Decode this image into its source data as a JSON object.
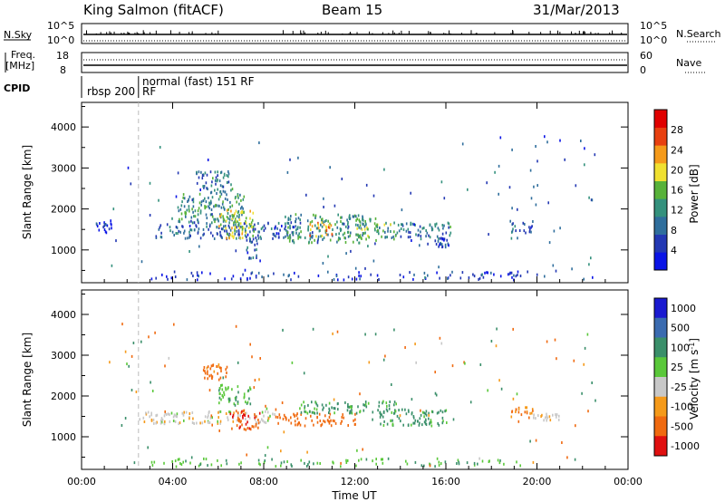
{
  "header": {
    "station": "King Salmon (fitACF)",
    "beam": "Beam 15",
    "date": "31/Mar/2013"
  },
  "top_panels": {
    "nsky_label": "N.Sky",
    "nsky_ticks": [
      "10^5",
      "10^0"
    ],
    "nsearch_label": "N.Search",
    "nsearch_ticks": [
      "10^5",
      "10^0"
    ],
    "freq_label_1": "Freq.",
    "freq_label_2": "[MHz]",
    "freq_ticks": [
      "18",
      "8"
    ],
    "nave_label": "Nave",
    "nave_ticks": [
      "60",
      "0"
    ],
    "cpid_label": "CPID",
    "cpid_segments": [
      {
        "start_hour": 0.0,
        "end_hour": 2.5,
        "text": "rbsp 200",
        "text2": ""
      },
      {
        "start_hour": 2.5,
        "end_hour": 24.0,
        "text": "normal (fast) 151 RF",
        "text2": "RF"
      }
    ]
  },
  "x_axis": {
    "label": "Time UT",
    "tick_labels": [
      "00:00",
      "04:00",
      "08:00",
      "12:00",
      "16:00",
      "20:00",
      "00:00"
    ],
    "tick_hours": [
      0,
      4,
      8,
      12,
      16,
      20,
      24
    ],
    "range_hours": [
      0,
      24
    ],
    "dashed_marker_hour": 2.5
  },
  "chart_data": [
    {
      "type": "heatmap",
      "title": "",
      "xlabel": "",
      "ylabel": "Slant Range [km]",
      "xlim": [
        0,
        24
      ],
      "ylim": [
        200,
        4600
      ],
      "y_ticks": [
        1000,
        2000,
        3000,
        4000
      ],
      "colorbar": {
        "label": "Power [dB]",
        "range": [
          0,
          32
        ],
        "tick_values": [
          4,
          8,
          12,
          16,
          20,
          24,
          28
        ],
        "tick_labels": [
          "4",
          "8",
          "12",
          "16",
          "20",
          "24",
          "28"
        ],
        "colors": [
          "#0a14e6",
          "#2338b3",
          "#2f6e9c",
          "#34917d",
          "#58b23a",
          "#f0e030",
          "#f59a1a",
          "#e84010",
          "#e00000"
        ]
      },
      "clusters": [
        {
          "x0": 0.6,
          "x1": 1.3,
          "y0": 1450,
          "y1": 1750,
          "value": 4
        },
        {
          "x0": 3.2,
          "x1": 9.5,
          "y0": 1300,
          "y1": 1700,
          "value": 8
        },
        {
          "x0": 4.2,
          "x1": 7.2,
          "y0": 1700,
          "y1": 2400,
          "value": 12
        },
        {
          "x0": 5.0,
          "x1": 6.6,
          "y0": 2400,
          "y1": 2950,
          "value": 10
        },
        {
          "x0": 6.0,
          "x1": 7.6,
          "y0": 1300,
          "y1": 2000,
          "value": 18
        },
        {
          "x0": 7.2,
          "x1": 7.7,
          "y0": 800,
          "y1": 1300,
          "value": 8
        },
        {
          "x0": 9.0,
          "x1": 12.5,
          "y0": 1200,
          "y1": 1900,
          "value": 12
        },
        {
          "x0": 10.0,
          "x1": 11.0,
          "y0": 1350,
          "y1": 1700,
          "value": 22
        },
        {
          "x0": 12.0,
          "x1": 13.8,
          "y0": 1250,
          "y1": 1800,
          "value": 14
        },
        {
          "x0": 13.8,
          "x1": 16.2,
          "y0": 1300,
          "y1": 1700,
          "value": 10
        },
        {
          "x0": 15.5,
          "x1": 16.1,
          "y0": 1100,
          "y1": 1300,
          "value": 6
        },
        {
          "x0": 18.8,
          "x1": 19.8,
          "y0": 1450,
          "y1": 1750,
          "value": 8
        },
        {
          "x0": 3.0,
          "x1": 19.5,
          "y0": 300,
          "y1": 500,
          "value": 4
        }
      ]
    },
    {
      "type": "heatmap",
      "title": "",
      "xlabel": "Time UT",
      "ylabel": "Slant Range [km]",
      "xlim": [
        0,
        24
      ],
      "ylim": [
        200,
        4600
      ],
      "y_ticks": [
        1000,
        2000,
        3000,
        4000
      ],
      "colorbar": {
        "label": "Velocity [m s^-1]",
        "tick_labels": [
          "1000",
          "500",
          "100",
          "25",
          "-25",
          "-100",
          "-500",
          "-1000"
        ],
        "colors": [
          "#1a1ad0",
          "#3a6bb0",
          "#3a8f6a",
          "#5ac83a",
          "#c8c8c8",
          "#f59a1a",
          "#f06a10",
          "#e01010"
        ]
      },
      "clusters": [
        {
          "x0": 2.5,
          "x1": 8.5,
          "y0": 1350,
          "y1": 1650,
          "value": 0
        },
        {
          "x0": 6.5,
          "x1": 7.8,
          "y0": 1200,
          "y1": 1700,
          "value": -400
        },
        {
          "x0": 8.5,
          "x1": 12.0,
          "y0": 1300,
          "y1": 1600,
          "value": -250
        },
        {
          "x0": 9.5,
          "x1": 13.8,
          "y0": 1600,
          "y1": 1900,
          "value": 120
        },
        {
          "x0": 5.2,
          "x1": 6.5,
          "y0": 2400,
          "y1": 2800,
          "value": -150
        },
        {
          "x0": 6.0,
          "x1": 7.4,
          "y0": 1800,
          "y1": 2300,
          "value": 80
        },
        {
          "x0": 13.0,
          "x1": 16.2,
          "y0": 1300,
          "y1": 1700,
          "value": 150
        },
        {
          "x0": 18.8,
          "x1": 19.8,
          "y0": 1500,
          "y1": 1750,
          "value": -120
        },
        {
          "x0": 19.8,
          "x1": 21.0,
          "y0": 1400,
          "y1": 1600,
          "value": 0
        },
        {
          "x0": 3.0,
          "x1": 19.5,
          "y0": 300,
          "y1": 500,
          "value": 80
        }
      ]
    }
  ]
}
